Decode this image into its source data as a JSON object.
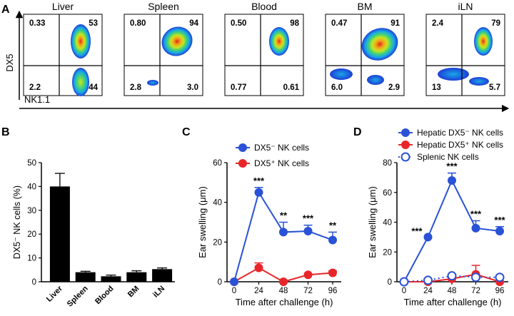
{
  "panel_labels": [
    "A",
    "B",
    "C",
    "D"
  ],
  "colors": {
    "hepatic_dx5neg": "#2a52d6",
    "dx5pos": "#e8262a",
    "splenic": "#2a52d6",
    "bar_fill": "#000000",
    "density_scale": [
      "#1d3fd6",
      "#1aa6e8",
      "#3fd17a",
      "#c9e51f",
      "#f2a21a",
      "#e0281e"
    ]
  },
  "chart_data": [
    {
      "type": "heatmap",
      "panel": "A",
      "xlabel": "NK1.1",
      "ylabel": "DX5",
      "plots": [
        {
          "title": "Liver",
          "quadrants": {
            "upper_left": "0.33",
            "upper_right": "53",
            "lower_left": "2.2",
            "lower_right": "44"
          }
        },
        {
          "title": "Spleen",
          "quadrants": {
            "upper_left": "0.80",
            "upper_right": "94",
            "lower_left": "2.8",
            "lower_right": "3.0"
          }
        },
        {
          "title": "Blood",
          "quadrants": {
            "upper_left": "0.50",
            "upper_right": "98",
            "lower_left": "0.77",
            "lower_right": "0.61"
          }
        },
        {
          "title": "BM",
          "quadrants": {
            "upper_left": "0.47",
            "upper_right": "91",
            "lower_left": "6.0",
            "lower_right": "2.9"
          }
        },
        {
          "title": "iLN",
          "quadrants": {
            "upper_left": "2.4",
            "upper_right": "79",
            "lower_left": "13",
            "lower_right": "5.7"
          }
        }
      ]
    },
    {
      "type": "bar",
      "panel": "B",
      "categories": [
        "Liver",
        "Spleen",
        "Blood",
        "BM",
        "iLN"
      ],
      "values": [
        40,
        4,
        2.3,
        4,
        5.3
      ],
      "errors": [
        5.5,
        0.4,
        0.5,
        0.6,
        0.5
      ],
      "ylabel": "DX5⁻ NK cells (%)",
      "ylim": [
        0,
        50
      ],
      "yticks": [
        "0",
        "10",
        "20",
        "30",
        "40",
        "50"
      ]
    },
    {
      "type": "line",
      "panel": "C",
      "x": [
        0,
        24,
        48,
        72,
        96
      ],
      "xticks": [
        "0",
        "24",
        "48",
        "72",
        "96"
      ],
      "xlabel": "Time after challenge (h)",
      "ylabel": "Ear swelling (μm)",
      "ylim": [
        0,
        60
      ],
      "yticks": [
        "0",
        "20",
        "40",
        "60"
      ],
      "legend_position": "top",
      "series": [
        {
          "name": "DX5⁻ NK cells",
          "color": "#2a52d6",
          "values": [
            0,
            45,
            25,
            25.5,
            21
          ],
          "errors": [
            0,
            2.5,
            5,
            3,
            4
          ]
        },
        {
          "name": "DX5⁺ NK cells",
          "color": "#e8262a",
          "values": [
            0,
            7,
            0,
            3.5,
            4.5
          ],
          "errors": [
            0,
            2.5,
            0,
            0,
            1
          ]
        }
      ],
      "annotations": [
        {
          "x": 24,
          "text": "***"
        },
        {
          "x": 48,
          "text": "**"
        },
        {
          "x": 72,
          "text": "***"
        },
        {
          "x": 96,
          "text": "**"
        }
      ]
    },
    {
      "type": "line",
      "panel": "D",
      "x": [
        0,
        24,
        48,
        72,
        96
      ],
      "xticks": [
        "0",
        "24",
        "48",
        "72",
        "96"
      ],
      "xlabel": "Time after challenge (h)",
      "ylabel": "Ear swelling (μm)",
      "ylim": [
        0,
        80
      ],
      "yticks": [
        "0",
        "20",
        "40",
        "60",
        "80"
      ],
      "legend_position": "top",
      "series": [
        {
          "name": "Hepatic DX5⁻ NK cells",
          "color": "#2a52d6",
          "style": "filled",
          "values": [
            0,
            30,
            68,
            36,
            34
          ],
          "errors": [
            0,
            0,
            5,
            5,
            3
          ]
        },
        {
          "name": "Hepatic DX5⁺ NK cells",
          "color": "#e8262a",
          "style": "filled",
          "values": [
            0,
            0,
            2,
            5,
            0
          ],
          "errors": [
            0,
            0,
            0,
            6,
            0
          ]
        },
        {
          "name": "Splenic NK cells",
          "color": "#2a52d6",
          "style": "open-dotted",
          "values": [
            0,
            1,
            4,
            3,
            3
          ],
          "errors": [
            0,
            0,
            0,
            0,
            0
          ]
        }
      ],
      "annotations": [
        {
          "x": 24,
          "text": "***"
        },
        {
          "x": 48,
          "text": "***"
        },
        {
          "x": 72,
          "text": "***"
        },
        {
          "x": 96,
          "text": "***"
        }
      ]
    }
  ]
}
